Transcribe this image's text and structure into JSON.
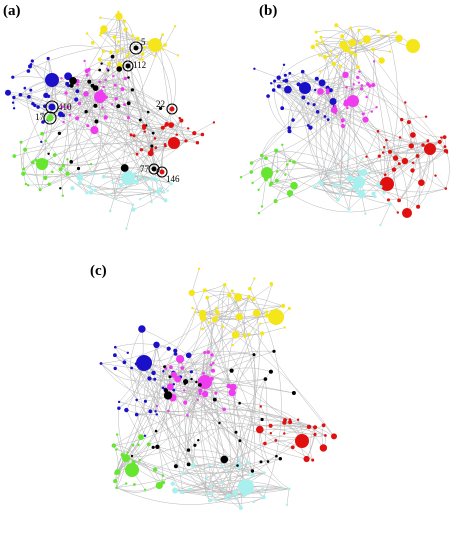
{
  "colors": {
    "yellow": "#f5e61b",
    "blue": "#1a10c8",
    "magenta": "#f03cf0",
    "red": "#e01010",
    "green": "#66e630",
    "cyan": "#a8f0ee",
    "black": "#000000",
    "edge": "#b9b9b9"
  },
  "panels": [
    {
      "label": "(a)",
      "annotations": [
        {
          "text": "5",
          "node": "a5"
        },
        {
          "text": "112",
          "node": "a112"
        },
        {
          "text": "410",
          "node": "a410"
        },
        {
          "text": "17",
          "node": "a17"
        },
        {
          "text": "22",
          "node": "a22"
        },
        {
          "text": "77",
          "node": "a77"
        },
        {
          "text": "146",
          "node": "a146"
        }
      ]
    },
    {
      "label": "(b)",
      "annotations": []
    },
    {
      "label": "(c)",
      "annotations": []
    }
  ]
}
